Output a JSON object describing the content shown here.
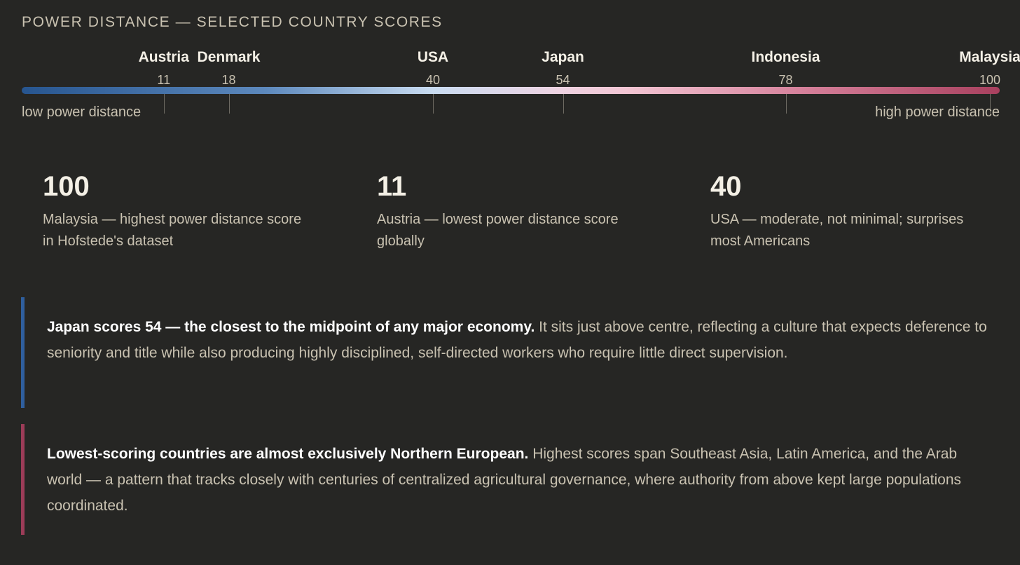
{
  "title": "POWER DISTANCE — SELECTED COUNTRY SCORES",
  "colors": {
    "background": "#262624",
    "low_end": "#27558f",
    "high_end": "#a8405e",
    "accent_blue": "#2f5f9e",
    "accent_red": "#9c3c58"
  },
  "chart_data": {
    "type": "scatter",
    "title": "POWER DISTANCE — SELECTED COUNTRY SCORES",
    "xlim": [
      0,
      100
    ],
    "points": [
      {
        "country": "Austria",
        "score": 11
      },
      {
        "country": "Denmark",
        "score": 18
      },
      {
        "country": "USA",
        "score": 40
      },
      {
        "country": "Japan",
        "score": 54
      },
      {
        "country": "Indonesia",
        "score": 78
      },
      {
        "country": "Malaysia",
        "score": 100
      }
    ],
    "low_label": "low power distance",
    "high_label": "high power distance"
  },
  "stats": [
    {
      "number": "100",
      "description": "Malaysia — highest power distance score in Hofstede's dataset"
    },
    {
      "number": "11",
      "description": "Austria — lowest power distance score globally"
    },
    {
      "number": "40",
      "description": "USA — moderate, not minimal; surprises most Americans"
    }
  ],
  "callouts": [
    {
      "bold": "Japan scores 54 — the closest to the midpoint of any major economy.",
      "text": " It sits just above centre, reflecting a culture that expects deference to seniority and title while also producing highly disciplined, self-directed workers who require little direct supervision."
    },
    {
      "bold": "Lowest-scoring countries are almost exclusively Northern European.",
      "text": " Highest scores span Southeast Asia, Latin America, and the Arab world — a pattern that tracks closely with centuries of centralized agricultural governance, where authority from above kept large populations coordinated."
    }
  ]
}
